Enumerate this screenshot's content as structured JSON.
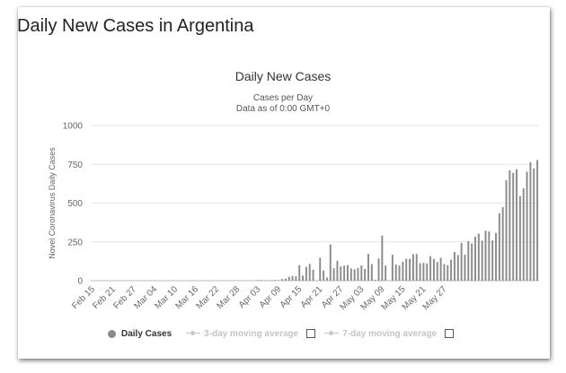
{
  "page": {
    "title": "Daily New Cases in Argentina"
  },
  "chart_data": {
    "type": "bar",
    "title": "Daily New Cases",
    "subtitle_lines": [
      "Cases per Day",
      "Data as of 0:00 GMT+0"
    ],
    "xlabel": "",
    "ylabel": "Novel Coronavirus Daily Cases",
    "ylim": [
      0,
      1000
    ],
    "yticks": [
      0,
      250,
      500,
      750,
      1000
    ],
    "x_tick_labels": [
      "Feb 15",
      "Feb 21",
      "Feb 27",
      "Mar 04",
      "Mar 10",
      "Mar 16",
      "Mar 22",
      "Mar 28",
      "Apr 03",
      "Apr 09",
      "Apr 15",
      "Apr 21",
      "Apr 27",
      "May 03",
      "May 09",
      "May 15",
      "May 21",
      "May 27"
    ],
    "x_start": "Feb 15",
    "bar_color": "#8a8a8a",
    "grid": true,
    "legend_position": "bottom",
    "series": [
      {
        "name": "Daily Cases",
        "values": [
          0,
          0,
          0,
          0,
          0,
          0,
          0,
          0,
          0,
          0,
          0,
          0,
          0,
          0,
          0,
          0,
          0,
          0,
          1,
          0,
          0,
          0,
          0,
          0,
          0,
          0,
          0,
          0,
          0,
          0,
          0,
          0,
          0,
          0,
          0,
          0,
          0,
          0,
          0,
          0,
          0,
          0,
          0,
          0,
          0,
          0,
          1,
          0,
          4,
          4,
          2,
          2,
          3,
          5,
          3,
          10,
          13,
          25,
          30,
          28,
          100,
          33,
          89,
          108,
          70,
          0,
          148,
          66,
          20,
          233,
          80,
          128,
          92,
          97,
          100,
          79,
          73,
          82,
          98,
          75,
          172,
          107,
          6,
          143,
          290,
          97,
          1,
          167,
          104,
          97,
          122,
          142,
          140,
          171,
          172,
          113,
          114,
          111,
          158,
          140,
          120,
          147,
          107,
          100,
          135,
          185,
          165,
          243,
          168,
          255,
          240,
          283,
          303,
          258,
          322,
          317,
          259,
          307,
          434,
          474,
          647,
          712,
          695,
          718,
          545,
          595,
          702,
          763,
          723,
          777
        ]
      }
    ]
  },
  "legend": {
    "daily": "Daily Cases",
    "ma3": "3-day moving average",
    "ma7": "7-day moving average"
  }
}
